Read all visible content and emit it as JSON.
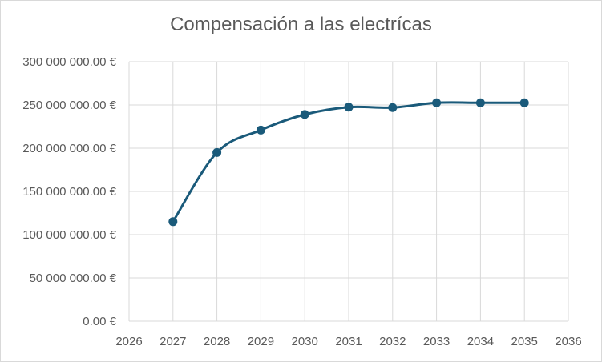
{
  "chart_data": {
    "type": "line",
    "title": "Compensación a las electrícas",
    "xlabel": "",
    "ylabel": "",
    "x_ticks": [
      "2026",
      "2027",
      "2028",
      "2029",
      "2030",
      "2031",
      "2032",
      "2033",
      "2034",
      "2035",
      "2036"
    ],
    "xlim": [
      2026,
      2036
    ],
    "y_ticks": [
      "0.00 €",
      "50 000 000.00 €",
      "100 000 000.00 €",
      "150 000 000.00 €",
      "200 000 000.00 €",
      "250 000 000.00 €",
      "300 000 000.00 €"
    ],
    "ylim": [
      0,
      300000000
    ],
    "grid": true,
    "smooth": true,
    "legend": "none",
    "series": [
      {
        "x": [
          2027,
          2028,
          2029,
          2030,
          2031,
          2032,
          2033,
          2034,
          2035
        ],
        "values": [
          115000000,
          195000000,
          221000000,
          239000000,
          247500000,
          247000000,
          252500000,
          252500000,
          252500000
        ],
        "color": "#1a5a7a"
      }
    ]
  }
}
